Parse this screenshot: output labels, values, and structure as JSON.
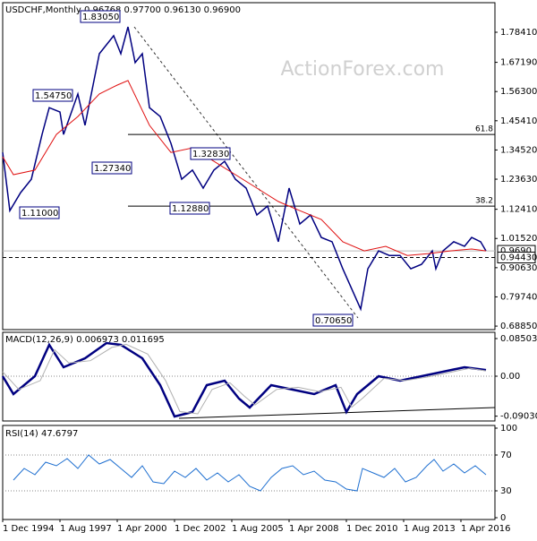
{
  "header": "USDCHF,Monthly  0.96768 0.97700 0.96130 0.96900",
  "watermark": "ActionForex.com",
  "chart_data": [
    {
      "type": "line",
      "xlim": [
        "1994-12-01",
        "2017-11-01"
      ],
      "ylim": [
        0.6754,
        1.8943
      ],
      "yticks": [
        {
          "value": 1.7841,
          "label": "1.78410"
        },
        {
          "value": 1.6719,
          "label": "1.67190"
        },
        {
          "value": 1.563,
          "label": "1.56300"
        },
        {
          "value": 1.4541,
          "label": "1.45410"
        },
        {
          "value": 1.3452,
          "label": "1.34520"
        },
        {
          "value": 1.2363,
          "label": "1.23630"
        },
        {
          "value": 1.1241,
          "label": "1.12410"
        },
        {
          "value": 1.0152,
          "label": "1.01520"
        },
        {
          "value": 0.9063,
          "label": "0.90630"
        },
        {
          "value": 0.7974,
          "label": "0.79740"
        },
        {
          "value": 0.6885,
          "label": "0.68850"
        }
      ],
      "series": [
        {
          "name": "USDCHF",
          "color": "#000080",
          "x": [
            "1994-12",
            "1995-04",
            "1995-10",
            "1996-04",
            "1996-10",
            "1997-02",
            "1997-08",
            "1997-10",
            "1998-06",
            "1998-10",
            "1999-06",
            "2000-02",
            "2000-06",
            "2000-10",
            "2001-02",
            "2001-06",
            "2001-10",
            "2002-04",
            "2002-10",
            "2003-04",
            "2003-10",
            "2004-04",
            "2004-10",
            "2005-04",
            "2005-10",
            "2006-04",
            "2006-10",
            "2007-04",
            "2007-10",
            "2008-04",
            "2008-10",
            "2009-04",
            "2009-10",
            "2010-04",
            "2010-10",
            "2011-08",
            "2011-12",
            "2012-06",
            "2012-12",
            "2013-06",
            "2013-12",
            "2014-06",
            "2014-12",
            "2015-02",
            "2015-06",
            "2015-12",
            "2016-06",
            "2016-10",
            "2017-03",
            "2017-06"
          ],
          "values": [
            1.336,
            1.119,
            1.186,
            1.236,
            1.403,
            1.503,
            1.487,
            1.403,
            1.554,
            1.437,
            1.704,
            1.771,
            1.704,
            1.804,
            1.671,
            1.704,
            1.503,
            1.47,
            1.37,
            1.236,
            1.27,
            1.203,
            1.27,
            1.303,
            1.236,
            1.203,
            1.103,
            1.136,
            1.003,
            1.203,
            1.069,
            1.103,
            1.019,
            1.003,
            0.902,
            0.752,
            0.902,
            0.969,
            0.952,
            0.952,
            0.902,
            0.919,
            0.969,
            0.902,
            0.969,
            1.003,
            0.986,
            1.019,
            1.003,
            0.969
          ]
        },
        {
          "name": "MA",
          "color": "#e01010",
          "x": [
            "1994-12",
            "1995-06",
            "1996-06",
            "1997-06",
            "1998-06",
            "1999-06",
            "2000-04",
            "2000-10",
            "2001-10",
            "2002-10",
            "2003-10",
            "2004-10",
            "2005-10",
            "2006-10",
            "2007-10",
            "2008-10",
            "2009-10",
            "2010-10",
            "2011-10",
            "2012-10",
            "2013-10",
            "2014-10",
            "2015-10",
            "2016-10",
            "2017-06"
          ],
          "values": [
            1.32,
            1.253,
            1.27,
            1.403,
            1.47,
            1.554,
            1.587,
            1.604,
            1.437,
            1.336,
            1.353,
            1.303,
            1.253,
            1.203,
            1.153,
            1.119,
            1.086,
            1.003,
            0.969,
            0.986,
            0.952,
            0.959,
            0.969,
            0.976,
            0.969
          ]
        }
      ],
      "levels": [
        {
          "value": 1.403,
          "label": "61.8"
        },
        {
          "value": 1.136,
          "label": "38.2"
        }
      ],
      "price_labels": [
        {
          "value": 0.969,
          "label": "0.9690"
        },
        {
          "value": 0.9443,
          "label": "0.94430"
        }
      ],
      "annotations": [
        "1.83050",
        "1.54750",
        "1.27340",
        "1.11000",
        "1.32830",
        "1.12880",
        "0.70650"
      ]
    },
    {
      "type": "line",
      "title": "MACD(12,26,9) 0.006973 0.011695",
      "xlim": [
        "1994-12-01",
        "2017-11-01"
      ],
      "ylim": [
        -0.1012,
        0.0992
      ],
      "yticks": [
        0.085032,
        {
          "value": 0,
          "label": "0.00"
        },
        -0.090302
      ],
      "series": [
        {
          "name": "MACD",
          "color": "#000080",
          "x": [
            "1994-12",
            "1995-06",
            "1996-06",
            "1997-02",
            "1997-10",
            "1998-10",
            "1999-10",
            "2000-06",
            "2001-06",
            "2002-04",
            "2002-12",
            "2003-10",
            "2004-06",
            "2005-04",
            "2005-12",
            "2006-06",
            "2007-06",
            "2008-06",
            "2009-06",
            "2010-06",
            "2010-12",
            "2011-06",
            "2012-06",
            "2013-06",
            "2014-06",
            "2015-06",
            "2016-06",
            "2017-06"
          ],
          "values": [
            0,
            -0.0405,
            0,
            0.0709,
            0.0203,
            0.0405,
            0.0749,
            0.0709,
            0.0405,
            -0.0203,
            -0.0911,
            -0.081,
            -0.0203,
            -0.0101,
            -0.0506,
            -0.0709,
            -0.0203,
            -0.0304,
            -0.0405,
            -0.0203,
            -0.081,
            -0.0405,
            0,
            -0.0101,
            0,
            0.0101,
            0.0203,
            0.014
          ]
        },
        {
          "name": "Signal",
          "color": "#b0b0b0",
          "x": [
            "1994-12",
            "1995-09",
            "1996-09",
            "1997-05",
            "1998-01",
            "1999-01",
            "2000-01",
            "2000-09",
            "2001-09",
            "2002-07",
            "2003-03",
            "2004-01",
            "2004-09",
            "2005-07",
            "2006-03",
            "2006-09",
            "2007-09",
            "2008-09",
            "2009-09",
            "2010-09",
            "2011-03",
            "2011-09",
            "2012-09",
            "2013-09",
            "2014-09",
            "2015-09",
            "2016-09",
            "2017-06"
          ],
          "values": [
            0.01,
            -0.03,
            -0.01,
            0.06,
            0.03,
            0.035,
            0.065,
            0.072,
            0.05,
            -0.01,
            -0.08,
            -0.085,
            -0.03,
            -0.015,
            -0.045,
            -0.065,
            -0.03,
            -0.025,
            -0.035,
            -0.025,
            -0.07,
            -0.05,
            -0.005,
            -0.01,
            -0.002,
            0.008,
            0.018,
            0.012
          ]
        }
      ]
    },
    {
      "type": "line",
      "title": "RSI(14) 47.6797",
      "xlim": [
        "1994-12-01",
        "2017-11-01"
      ],
      "ylim": [
        -2,
        103
      ],
      "yticks": [
        100,
        70,
        30,
        0
      ],
      "guides": [
        70,
        30
      ],
      "xticks": [
        {
          "value": "1994-12",
          "label": "1 Dec 1994"
        },
        {
          "value": "1997-08",
          "label": "1 Aug 1997"
        },
        {
          "value": "2000-04",
          "label": "1 Apr 2000"
        },
        {
          "value": "2002-12",
          "label": "1 Dec 2002"
        },
        {
          "value": "2005-08",
          "label": "1 Aug 2005"
        },
        {
          "value": "2008-04",
          "label": "1 Apr 2008"
        },
        {
          "value": "2010-12",
          "label": "1 Dec 2010"
        },
        {
          "value": "2013-08",
          "label": "1 Aug 2013"
        },
        {
          "value": "2016-04",
          "label": "1 Apr 2016"
        }
      ],
      "series": [
        {
          "name": "RSI",
          "color": "#1e6fd0",
          "x": [
            "1995-06",
            "1995-12",
            "1996-06",
            "1996-12",
            "1997-06",
            "1997-12",
            "1998-06",
            "1998-12",
            "1999-06",
            "1999-12",
            "2000-06",
            "2000-12",
            "2001-06",
            "2001-12",
            "2002-06",
            "2002-12",
            "2003-06",
            "2003-12",
            "2004-06",
            "2004-12",
            "2005-06",
            "2005-12",
            "2006-06",
            "2006-12",
            "2007-06",
            "2007-12",
            "2008-06",
            "2008-12",
            "2009-06",
            "2009-12",
            "2010-06",
            "2010-12",
            "2011-06",
            "2011-09",
            "2012-03",
            "2012-09",
            "2013-03",
            "2013-09",
            "2014-03",
            "2014-09",
            "2015-01",
            "2015-06",
            "2015-12",
            "2016-06",
            "2016-12",
            "2017-06"
          ],
          "values": [
            42,
            55,
            48,
            62,
            58,
            66,
            55,
            70,
            60,
            65,
            55,
            45,
            58,
            40,
            38,
            52,
            45,
            55,
            42,
            50,
            40,
            48,
            35,
            30,
            45,
            55,
            58,
            48,
            52,
            42,
            40,
            32,
            30,
            55,
            50,
            45,
            55,
            40,
            45,
            58,
            65,
            52,
            60,
            50,
            58,
            48
          ]
        }
      ]
    }
  ]
}
